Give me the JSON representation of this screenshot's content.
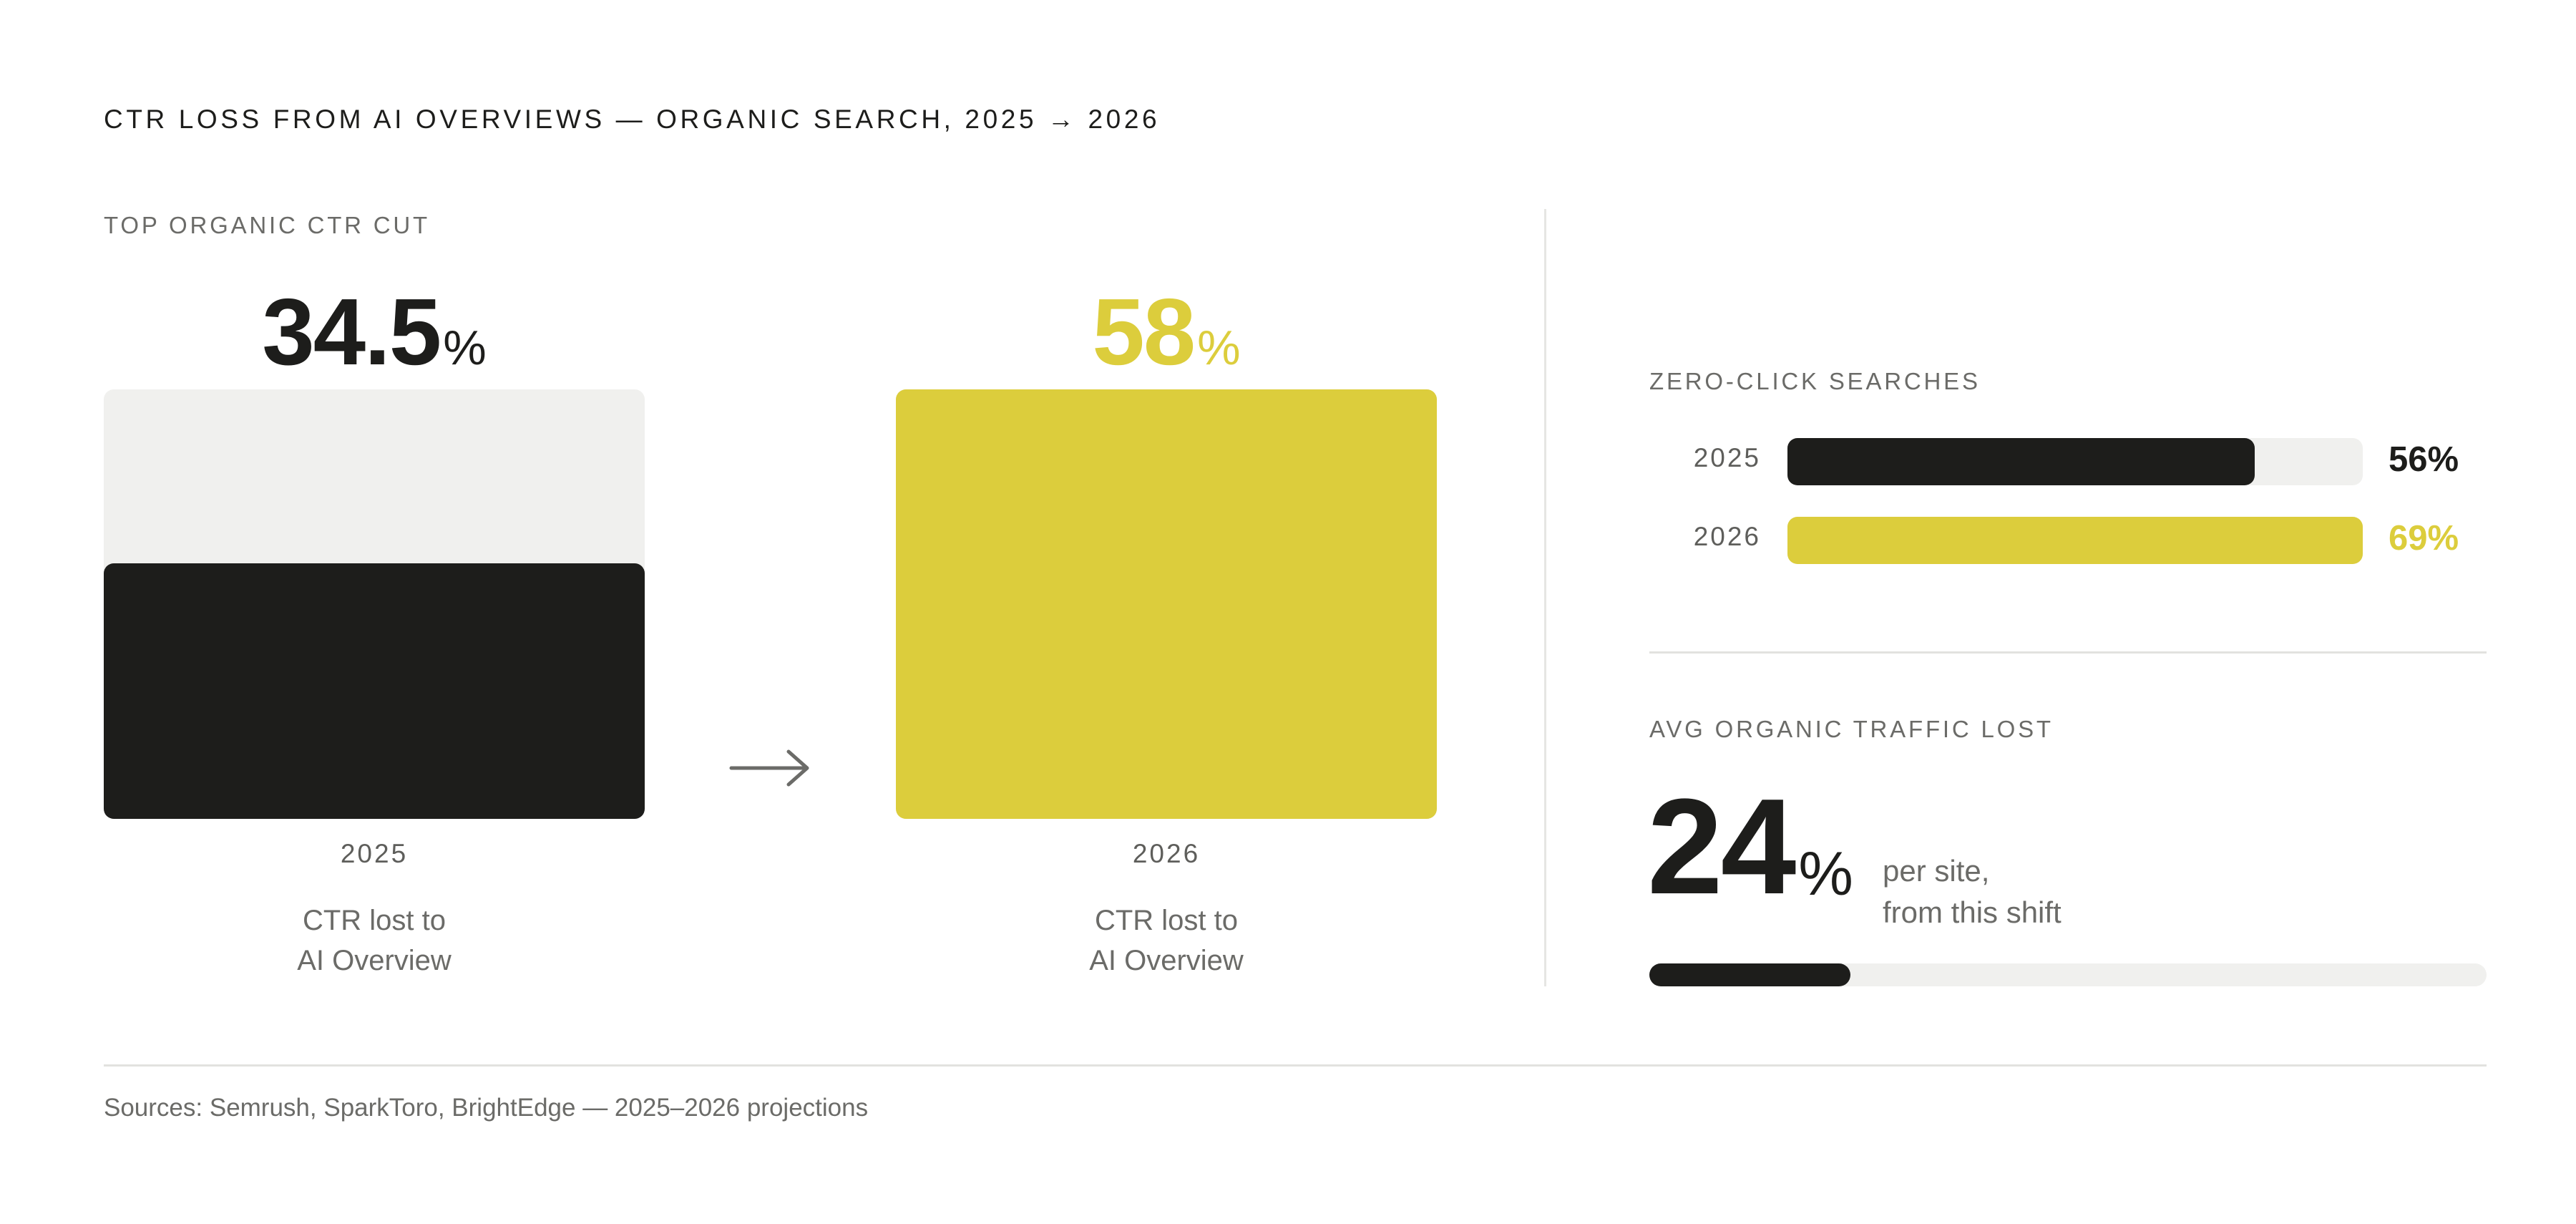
{
  "title": "CTR LOSS FROM AI OVERVIEWS — ORGANIC SEARCH, 2025 → 2026",
  "sources": "Sources: Semrush, SparkToro, BrightEdge — 2025–2026 projections",
  "colors": {
    "dark": "#1d1d1b",
    "accent": "#dccd3c",
    "track": "#f0f0ee",
    "muted": "#6b6b68"
  },
  "arrow_icon": "→",
  "chart_data": [
    {
      "type": "bar",
      "title": "TOP ORGANIC CTR CUT",
      "categories": [
        "2025",
        "2026"
      ],
      "values": [
        34.5,
        58
      ],
      "value_labels": [
        "34.5",
        "58"
      ],
      "unit": "%",
      "ylim": [
        0,
        58
      ],
      "captions": [
        "CTR lost to\nAI Overview",
        "CTR lost to\nAI Overview"
      ],
      "colors": [
        "#1d1d1b",
        "#dccd3c"
      ]
    },
    {
      "type": "bar",
      "orientation": "horizontal",
      "title": "ZERO-CLICK SEARCHES",
      "categories": [
        "2025",
        "2026"
      ],
      "values": [
        56,
        69
      ],
      "value_labels": [
        "56%",
        "69%"
      ],
      "xlim": [
        0,
        69
      ],
      "colors": [
        "#1d1d1b",
        "#dccd3c"
      ]
    },
    {
      "type": "bar",
      "orientation": "horizontal",
      "title": "AVG ORGANIC TRAFFIC LOST",
      "values": [
        24
      ],
      "value_label": "24",
      "unit": "%",
      "note": "per site,\nfrom this shift",
      "xlim": [
        0,
        100
      ]
    }
  ]
}
